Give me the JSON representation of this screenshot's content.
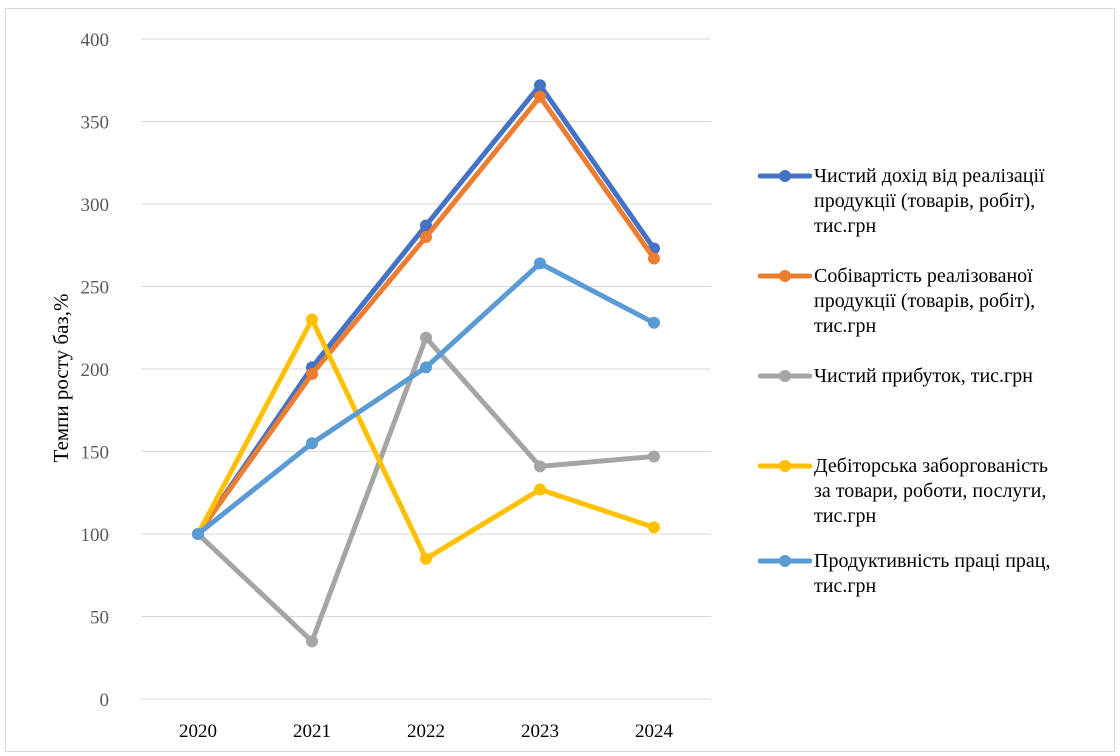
{
  "chart_data": {
    "type": "line",
    "title": "",
    "xlabel": "",
    "ylabel": "Темпи росту баз,%",
    "x": [
      "2020",
      "2021",
      "2022",
      "2023",
      "2024"
    ],
    "ylim": [
      0,
      400
    ],
    "yticks": [
      "0",
      "50",
      "100",
      "150",
      "200",
      "250",
      "300",
      "350",
      "400"
    ],
    "grid": "horizontal",
    "legend_position": "right",
    "series": [
      {
        "name": "Чистий дохід від реалізації продукції (товарів, робіт), тис.грн",
        "name_lines": [
          "Чистий дохід від реалізації",
          "продукції (товарів, робіт),",
          "тис.грн"
        ],
        "color": "#4472C4",
        "values": [
          100,
          201,
          287,
          372,
          273
        ]
      },
      {
        "name": "Собівартість реалізованої продукції (товарів, робіт), тис.грн",
        "name_lines": [
          "Собівартість реалізованої",
          "продукції (товарів, робіт),",
          "тис.грн"
        ],
        "color": "#ED7D31",
        "values": [
          100,
          197,
          280,
          365,
          267
        ]
      },
      {
        "name": "Чистий прибуток, тис.грн",
        "name_lines": [
          "Чистий прибуток, тис.грн"
        ],
        "color": "#A5A5A5",
        "values": [
          100,
          35,
          219,
          141,
          147
        ]
      },
      {
        "name": "Дебіторська заборгованість за товари, роботи, послуги, тис.грн",
        "name_lines": [
          "Дебіторська заборгованість",
          "за товари, роботи, послуги,",
          "тис.грн"
        ],
        "color": "#FFC000",
        "values": [
          100,
          230,
          85,
          127,
          104
        ]
      },
      {
        "name": "Продуктивність праці прац, тис.грн",
        "name_lines": [
          "Продуктивність праці прац,",
          "тис.грн"
        ],
        "color": "#5B9BD5",
        "values": [
          100,
          155,
          201,
          264,
          228
        ]
      }
    ]
  }
}
